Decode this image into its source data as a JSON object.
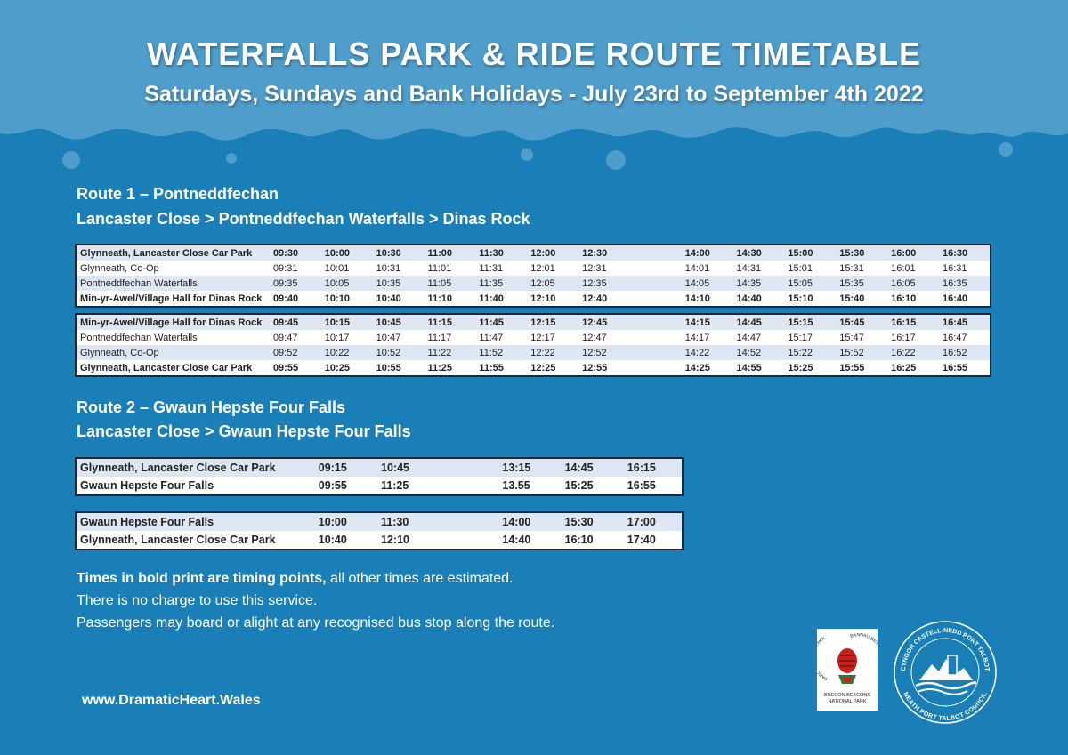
{
  "header": {
    "title": "WATERFALLS PARK & RIDE ROUTE TIMETABLE",
    "subtitle": "Saturdays, Sundays and Bank Holidays - July 23rd to September 4th 2022"
  },
  "route1": {
    "heading": "Route 1 – Pontneddfechan",
    "subheading": "Lancaster Close > Pontneddfechan Waterfalls > Dinas Rock",
    "outbound": [
      {
        "stop": "Glynneath, Lancaster Close Car Park",
        "bold": true,
        "times": [
          "09:30",
          "10:00",
          "10:30",
          "11:00",
          "11:30",
          "12:00",
          "12:30",
          "",
          "14:00",
          "14:30",
          "15:00",
          "15:30",
          "16:00",
          "16:30"
        ]
      },
      {
        "stop": "Glynneath, Co-Op",
        "bold": false,
        "times": [
          "09:31",
          "10:01",
          "10:31",
          "11:01",
          "11:31",
          "12:01",
          "12:31",
          "",
          "14:01",
          "14:31",
          "15:01",
          "15:31",
          "16:01",
          "16:31"
        ]
      },
      {
        "stop": "Pontneddfechan Waterfalls",
        "bold": false,
        "times": [
          "09:35",
          "10:05",
          "10:35",
          "11:05",
          "11:35",
          "12:05",
          "12:35",
          "",
          "14:05",
          "14:35",
          "15:05",
          "15:35",
          "16:05",
          "16:35"
        ]
      },
      {
        "stop": "Min-yr-Awel/Village Hall for Dinas Rock",
        "bold": true,
        "times": [
          "09:40",
          "10:10",
          "10:40",
          "11:10",
          "11:40",
          "12:10",
          "12:40",
          "",
          "14:10",
          "14:40",
          "15:10",
          "15:40",
          "16:10",
          "16:40"
        ]
      }
    ],
    "return": [
      {
        "stop": "Min-yr-Awel/Village Hall for Dinas Rock",
        "bold": true,
        "times": [
          "09:45",
          "10:15",
          "10:45",
          "11:15",
          "11:45",
          "12:15",
          "12:45",
          "",
          "14:15",
          "14:45",
          "15:15",
          "15:45",
          "16:15",
          "16:45"
        ]
      },
      {
        "stop": "Pontneddfechan Waterfalls",
        "bold": false,
        "times": [
          "09:47",
          "10:17",
          "10:47",
          "11:17",
          "11:47",
          "12:17",
          "12:47",
          "",
          "14:17",
          "14:47",
          "15:17",
          "15:47",
          "16:17",
          "16:47"
        ]
      },
      {
        "stop": "Glynneath, Co-Op",
        "bold": false,
        "times": [
          "09:52",
          "10:22",
          "10:52",
          "11:22",
          "11:52",
          "12:22",
          "12:52",
          "",
          "14:22",
          "14:52",
          "15:22",
          "15:52",
          "16:22",
          "16:52"
        ]
      },
      {
        "stop": "Glynneath, Lancaster Close Car Park",
        "bold": true,
        "times": [
          "09:55",
          "10:25",
          "10:55",
          "11:25",
          "11:55",
          "12:25",
          "12:55",
          "",
          "14:25",
          "14:55",
          "15:25",
          "15:55",
          "16:25",
          "16:55"
        ]
      }
    ]
  },
  "route2": {
    "heading": "Route 2 – Gwaun Hepste Four Falls",
    "subheading": "Lancaster Close > Gwaun Hepste Four Falls",
    "outbound": [
      {
        "stop": "Glynneath, Lancaster Close Car Park",
        "times": [
          "09:15",
          "10:45",
          "",
          "13:15",
          "14:45",
          "16:15"
        ]
      },
      {
        "stop": "Gwaun Hepste Four Falls",
        "times": [
          "09:55",
          "11:25",
          "",
          "13.55",
          "15:25",
          "16:55"
        ]
      }
    ],
    "return": [
      {
        "stop": "Gwaun Hepste Four Falls",
        "times": [
          "10:00",
          "11:30",
          "",
          "14:00",
          "15:30",
          "17:00"
        ]
      },
      {
        "stop": "Glynneath, Lancaster Close Car Park",
        "times": [
          "10:40",
          "12:10",
          "",
          "14:40",
          "16:10",
          "17:40"
        ]
      }
    ]
  },
  "notes": {
    "line1_bold": "Times in bold print are timing points,",
    "line1_rest": " all other times are estimated.",
    "line2": "There is no charge to use this service.",
    "line3": "Passengers may board or alight at any recognised bus stop along the route."
  },
  "footer": {
    "website": "www.DramaticHeart.Wales",
    "bb_logo_lines": [
      "BRECON BEACONS",
      "NATIONAL PARK"
    ],
    "bb_logo_arc_left": "PARC CENEDLAETHOL",
    "bb_logo_arc_right": "BANNAU BRYCHEINIOG",
    "npt_logo_top": "CYNGOR CASTELL-NEDD PORT TALBOT",
    "npt_logo_bottom": "NEATH PORT TALBOT COUNCIL"
  },
  "colors": {
    "background": "#1a7fb6",
    "header_band": "#4f9dcb",
    "table_alt_row": "#dde6f2",
    "table_border": "#1b2a3a"
  }
}
